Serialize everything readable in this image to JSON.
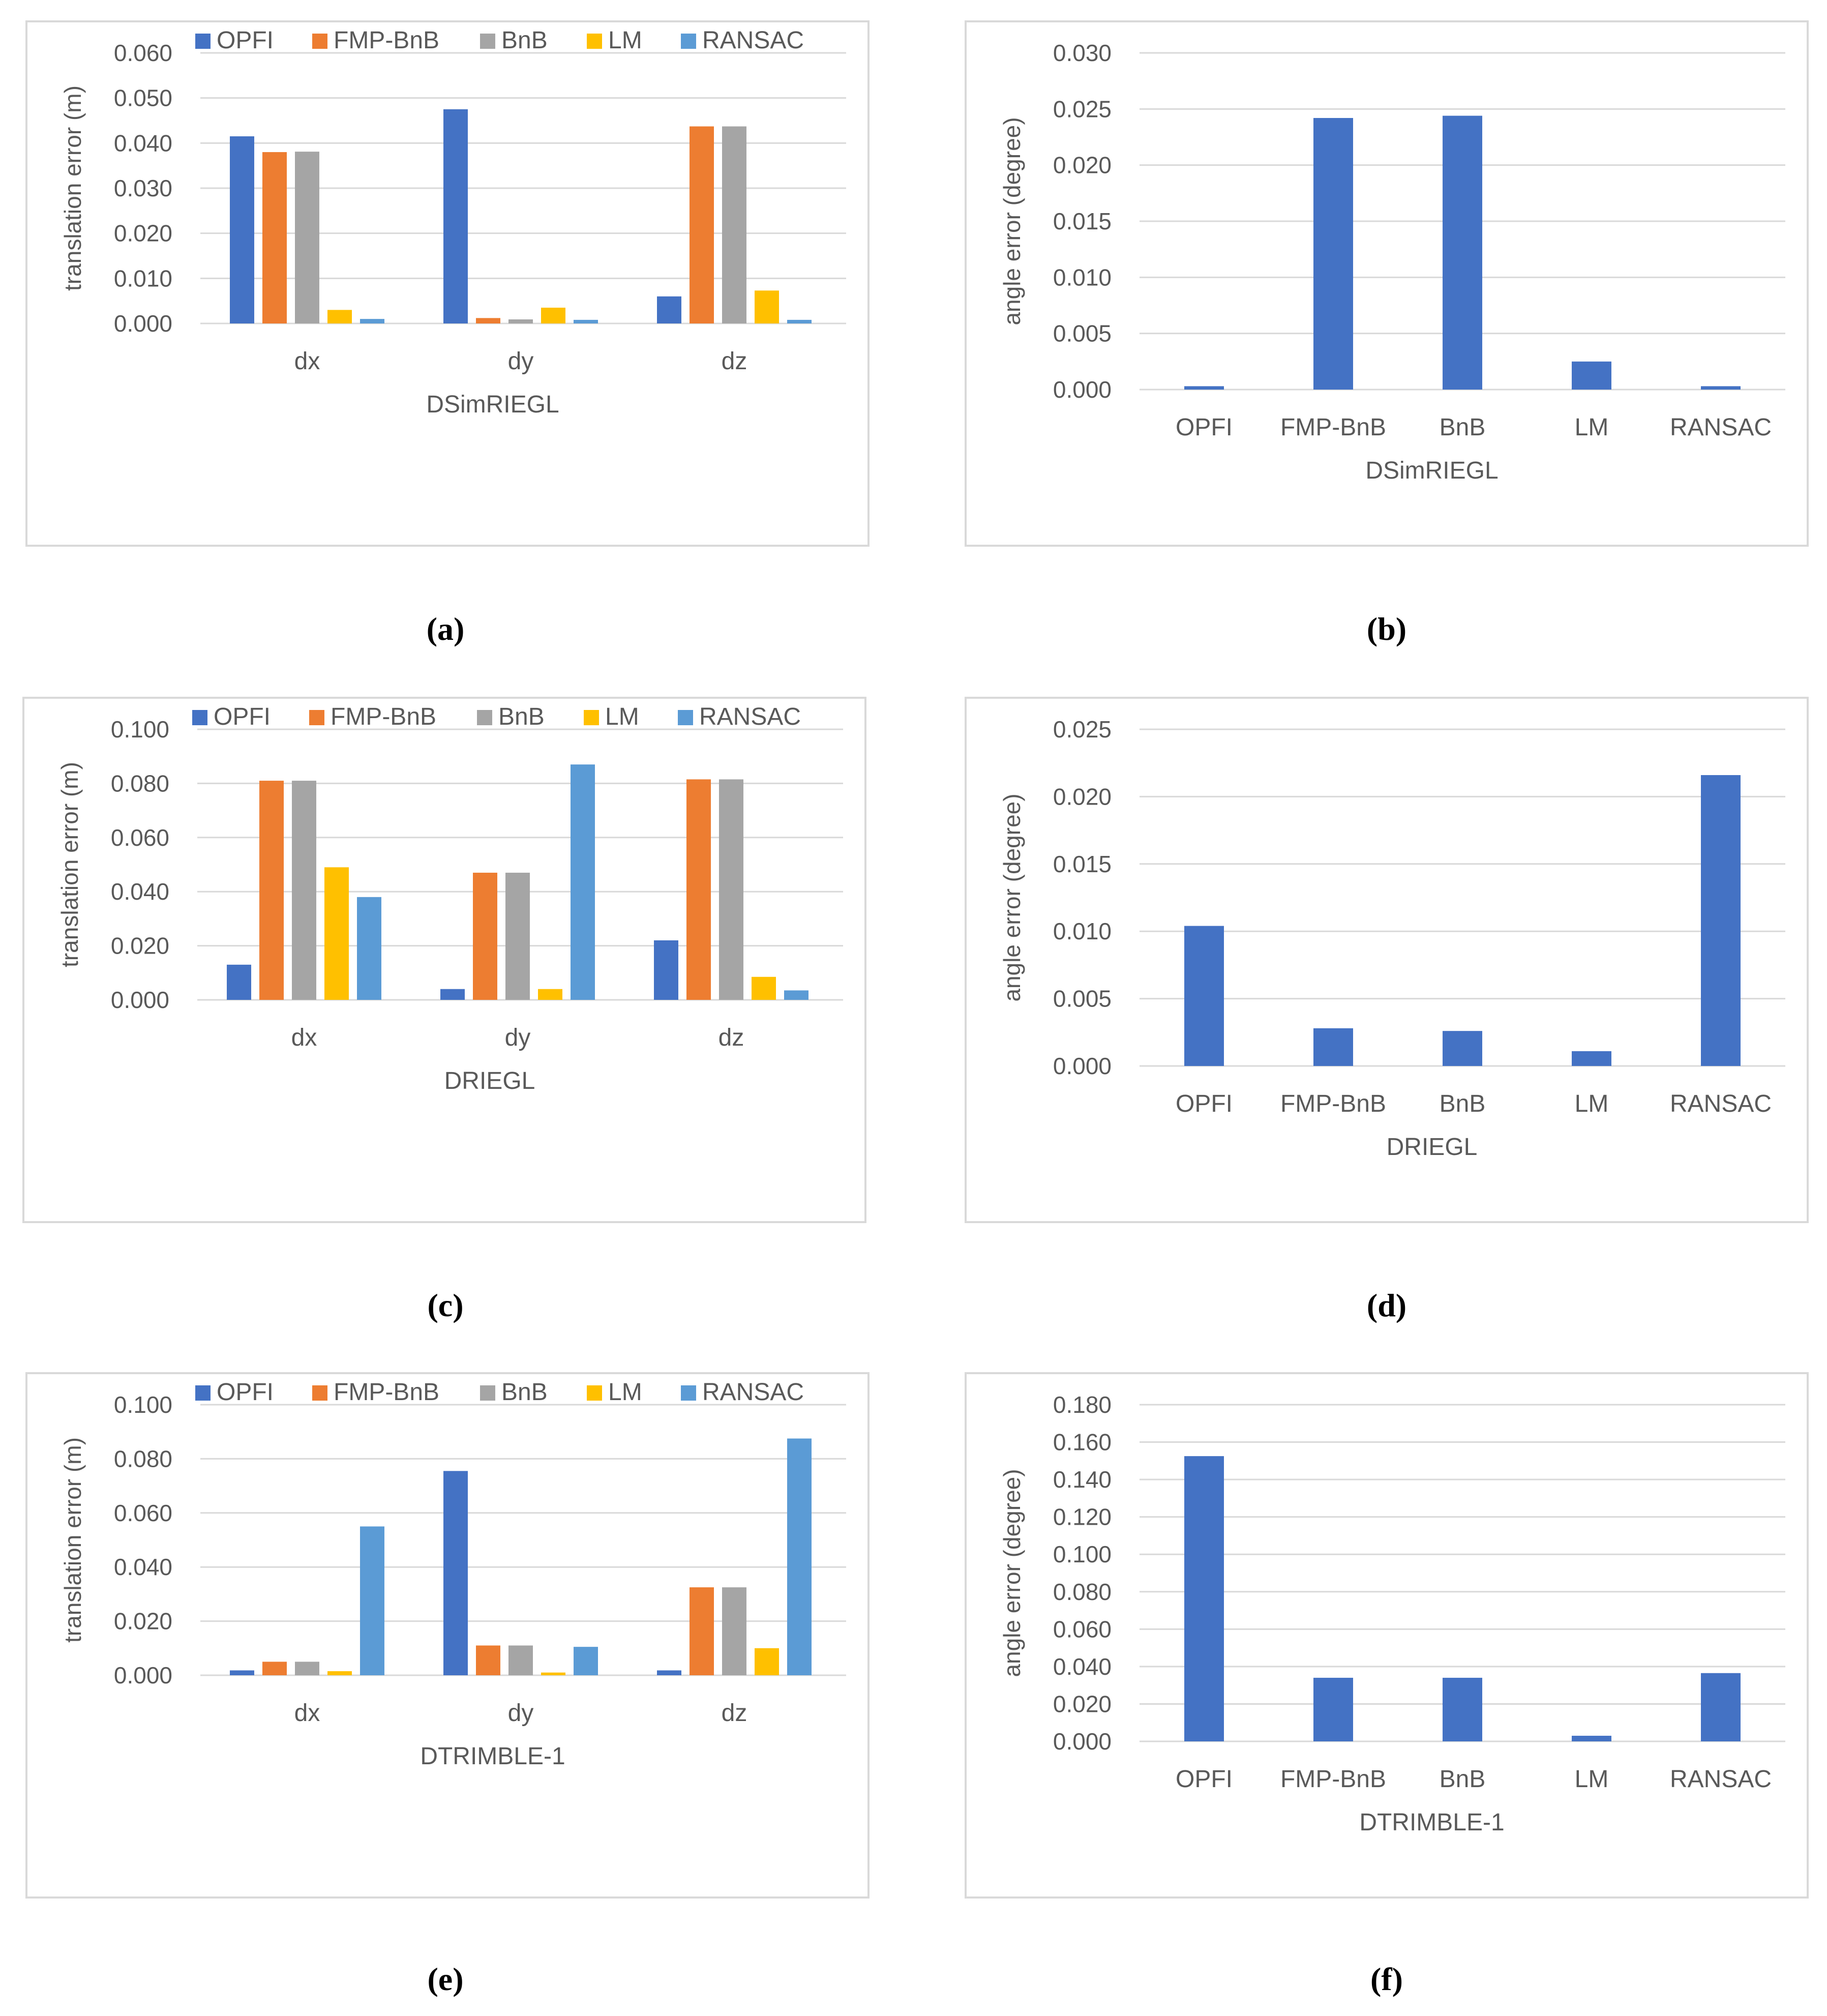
{
  "colors": {
    "OPFI": "#4472c4",
    "FMP-BnB": "#ed7d31",
    "BnB": "#a5a5a5",
    "LM": "#ffc000",
    "RANSAC": "#5b9bd5",
    "single": "#4472c4",
    "grid": "#d9d9d9",
    "text": "#595959"
  },
  "captions": [
    "(a)",
    "(b)",
    "(c)",
    "(d)",
    "(e)",
    "(f)"
  ],
  "chart_data": [
    {
      "type": "bar",
      "title": "",
      "dataset": "DSimRIEGL",
      "xlabel": "DSimRIEGL",
      "ylabel": "translation error (m)",
      "categories": [
        "dx",
        "dy",
        "dz"
      ],
      "ylim": [
        0,
        0.06
      ],
      "yticks": [
        0,
        0.01,
        0.02,
        0.03,
        0.04,
        0.05,
        0.06
      ],
      "ytick_labels": [
        "0.000",
        "0.010",
        "0.020",
        "0.030",
        "0.040",
        "0.050",
        "0.060"
      ],
      "legend": "top",
      "series": [
        {
          "name": "OPFI",
          "values": [
            0.0415,
            0.0475,
            0.006
          ]
        },
        {
          "name": "FMP-BnB",
          "values": [
            0.038,
            0.0012,
            0.0437
          ]
        },
        {
          "name": "BnB",
          "values": [
            0.0381,
            0.0009,
            0.0437
          ]
        },
        {
          "name": "LM",
          "values": [
            0.003,
            0.0035,
            0.0073
          ]
        },
        {
          "name": "RANSAC",
          "values": [
            0.001,
            0.0008,
            0.0008
          ]
        }
      ]
    },
    {
      "type": "bar",
      "title": "",
      "dataset": "DSimRIEGL",
      "xlabel": "DSimRIEGL",
      "ylabel": "angle error (degree)",
      "categories": [
        "OPFI",
        "FMP-BnB",
        "BnB",
        "LM",
        "RANSAC"
      ],
      "ylim": [
        0,
        0.03
      ],
      "yticks": [
        0,
        0.005,
        0.01,
        0.015,
        0.02,
        0.025,
        0.03
      ],
      "ytick_labels": [
        "0.000",
        "0.005",
        "0.010",
        "0.015",
        "0.020",
        "0.025",
        "0.030"
      ],
      "legend": "none",
      "series": [
        {
          "name": "angle error",
          "values": [
            0.0003,
            0.0242,
            0.0244,
            0.0025,
            0.0003
          ]
        }
      ]
    },
    {
      "type": "bar",
      "title": "",
      "dataset": "DRIEGL",
      "xlabel": "DRIEGL",
      "ylabel": "translation error (m)",
      "categories": [
        "dx",
        "dy",
        "dz"
      ],
      "ylim": [
        0,
        0.1
      ],
      "yticks": [
        0,
        0.02,
        0.04,
        0.06,
        0.08,
        0.1
      ],
      "ytick_labels": [
        "0.000",
        "0.020",
        "0.040",
        "0.060",
        "0.080",
        "0.100"
      ],
      "legend": "top",
      "series": [
        {
          "name": "OPFI",
          "values": [
            0.013,
            0.004,
            0.022
          ]
        },
        {
          "name": "FMP-BnB",
          "values": [
            0.081,
            0.047,
            0.0815
          ]
        },
        {
          "name": "BnB",
          "values": [
            0.081,
            0.047,
            0.0815
          ]
        },
        {
          "name": "LM",
          "values": [
            0.049,
            0.004,
            0.0085
          ]
        },
        {
          "name": "RANSAC",
          "values": [
            0.038,
            0.087,
            0.0035
          ]
        }
      ]
    },
    {
      "type": "bar",
      "title": "",
      "dataset": "DRIEGL",
      "xlabel": "DRIEGL",
      "ylabel": "angle error (degree)",
      "categories": [
        "OPFI",
        "FMP-BnB",
        "BnB",
        "LM",
        "RANSAC"
      ],
      "ylim": [
        0,
        0.025
      ],
      "yticks": [
        0,
        0.005,
        0.01,
        0.015,
        0.02,
        0.025
      ],
      "ytick_labels": [
        "0.000",
        "0.005",
        "0.010",
        "0.015",
        "0.020",
        "0.025"
      ],
      "legend": "none",
      "series": [
        {
          "name": "angle error",
          "values": [
            0.0104,
            0.0028,
            0.0026,
            0.0011,
            0.0216
          ]
        }
      ]
    },
    {
      "type": "bar",
      "title": "",
      "dataset": "DTRIMBLE-1",
      "xlabel": "DTRIMBLE-1",
      "ylabel": "translation error (m)",
      "categories": [
        "dx",
        "dy",
        "dz"
      ],
      "ylim": [
        0,
        0.1
      ],
      "yticks": [
        0,
        0.02,
        0.04,
        0.06,
        0.08,
        0.1
      ],
      "ytick_labels": [
        "0.000",
        "0.020",
        "0.040",
        "0.060",
        "0.080",
        "0.100"
      ],
      "legend": "top",
      "series": [
        {
          "name": "OPFI",
          "values": [
            0.0018,
            0.0755,
            0.0018
          ]
        },
        {
          "name": "FMP-BnB",
          "values": [
            0.005,
            0.011,
            0.0325
          ]
        },
        {
          "name": "BnB",
          "values": [
            0.005,
            0.011,
            0.0325
          ]
        },
        {
          "name": "LM",
          "values": [
            0.0015,
            0.001,
            0.01
          ]
        },
        {
          "name": "RANSAC",
          "values": [
            0.055,
            0.0105,
            0.0875
          ]
        }
      ]
    },
    {
      "type": "bar",
      "title": "",
      "dataset": "DTRIMBLE-1",
      "xlabel": "DTRIMBLE-1",
      "ylabel": "angle error (degree)",
      "categories": [
        "OPFI",
        "FMP-BnB",
        "BnB",
        "LM",
        "RANSAC"
      ],
      "ylim": [
        0,
        0.18
      ],
      "yticks": [
        0,
        0.02,
        0.04,
        0.06,
        0.08,
        0.1,
        0.12,
        0.14,
        0.16,
        0.18
      ],
      "ytick_labels": [
        "0.000",
        "0.020",
        "0.040",
        "0.060",
        "0.080",
        "0.100",
        "0.120",
        "0.140",
        "0.160",
        "0.180"
      ],
      "legend": "none",
      "series": [
        {
          "name": "angle error",
          "values": [
            0.1525,
            0.034,
            0.034,
            0.003,
            0.0365
          ]
        }
      ]
    }
  ]
}
